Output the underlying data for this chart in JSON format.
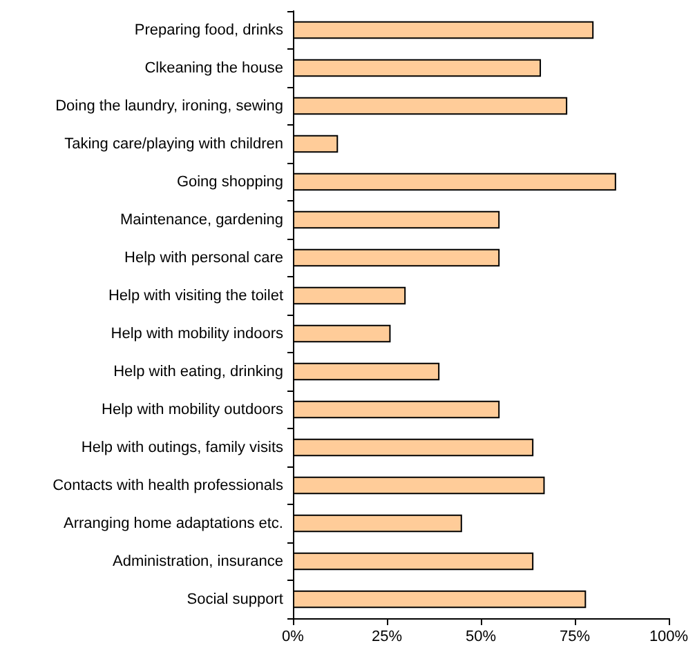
{
  "chart_data": {
    "type": "bar",
    "orientation": "horizontal",
    "categories": [
      "Preparing food, drinks",
      "Clkeaning the house",
      "Doing the laundry, ironing, sewing",
      "Taking care/playing with children",
      "Going shopping",
      "Maintenance, gardening",
      "Help with personal care",
      "Help with visiting the toilet",
      "Help with mobility indoors",
      "Help with eating, drinking",
      "Help with mobility outdoors",
      "Help with outings, family visits",
      "Contacts with health professionals",
      "Arranging home adaptations etc.",
      "Administration, insurance",
      "Social support"
    ],
    "values": [
      80,
      66,
      73,
      12,
      86,
      55,
      55,
      30,
      26,
      39,
      55,
      64,
      67,
      45,
      64,
      78
    ],
    "color": "#ffcc99",
    "xlim": [
      0,
      100
    ],
    "xticks": [
      {
        "value": 0,
        "label": "0%"
      },
      {
        "value": 25,
        "label": "25%"
      },
      {
        "value": 50,
        "label": "50%"
      },
      {
        "value": 75,
        "label": "75%"
      },
      {
        "value": 100,
        "label": "100%"
      }
    ],
    "grid": false
  }
}
